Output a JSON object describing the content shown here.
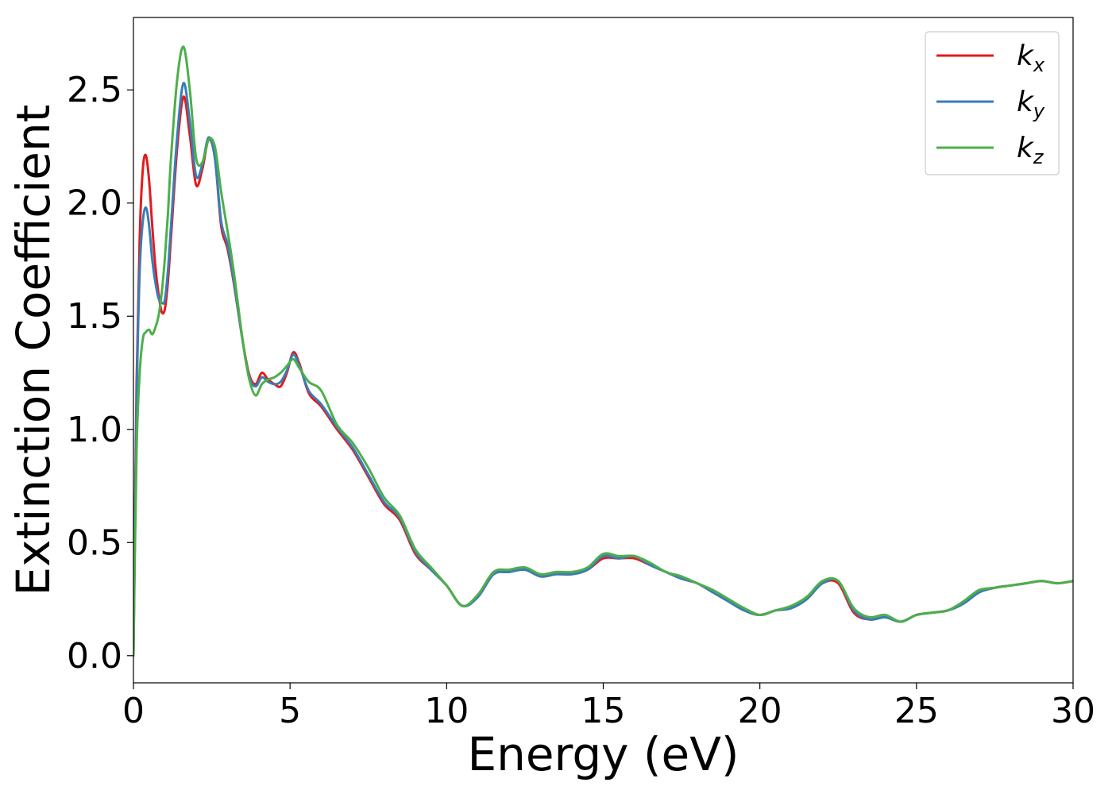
{
  "chart_data": {
    "type": "line",
    "title": "",
    "xlabel": "Energy (eV)",
    "ylabel": "Extinction Coefficient",
    "xlim": [
      0,
      30
    ],
    "ylim": [
      -0.12,
      2.82
    ],
    "xticks": [
      0,
      5,
      10,
      15,
      20,
      25,
      30
    ],
    "xtick_labels": [
      "0",
      "5",
      "10",
      "15",
      "20",
      "25",
      "30"
    ],
    "yticks": [
      0.0,
      0.5,
      1.0,
      1.5,
      2.0,
      2.5
    ],
    "ytick_labels": [
      "0.0",
      "0.5",
      "1.0",
      "1.5",
      "2.0",
      "2.5"
    ],
    "grid": false,
    "legend_position": "top-right",
    "series": [
      {
        "name": "k",
        "subscript": "x",
        "color": "#e41a1c",
        "x": [
          0,
          0.1,
          0.2,
          0.3,
          0.4,
          0.5,
          0.6,
          0.7,
          0.8,
          0.9,
          1.0,
          1.1,
          1.2,
          1.4,
          1.6,
          1.8,
          2.0,
          2.2,
          2.4,
          2.6,
          2.8,
          3.0,
          3.2,
          3.5,
          3.7,
          3.9,
          4.1,
          4.3,
          4.5,
          4.7,
          4.9,
          5.1,
          5.3,
          5.6,
          6.0,
          6.5,
          7.0,
          7.5,
          8.0,
          8.5,
          9.0,
          9.5,
          10.0,
          10.5,
          11.0,
          11.5,
          12.0,
          12.5,
          13.0,
          13.5,
          14.0,
          14.5,
          15.0,
          15.5,
          16.0,
          16.5,
          17.0,
          17.5,
          18.0,
          18.5,
          19.0,
          19.5,
          20.0,
          20.5,
          21.0,
          21.5,
          22.0,
          22.5,
          23.0,
          23.5,
          24.0,
          24.5,
          25.0,
          25.5,
          26.0,
          26.5,
          27.0,
          27.5,
          28.0,
          28.5,
          29.0,
          29.5,
          30.0
        ],
        "y": [
          0.0,
          1.2,
          1.85,
          2.15,
          2.21,
          2.1,
          1.9,
          1.72,
          1.6,
          1.52,
          1.53,
          1.65,
          1.85,
          2.25,
          2.47,
          2.3,
          2.08,
          2.15,
          2.28,
          2.2,
          1.9,
          1.8,
          1.65,
          1.38,
          1.24,
          1.2,
          1.25,
          1.22,
          1.2,
          1.19,
          1.25,
          1.34,
          1.29,
          1.16,
          1.1,
          1.0,
          0.91,
          0.79,
          0.67,
          0.6,
          0.45,
          0.38,
          0.31,
          0.22,
          0.26,
          0.36,
          0.37,
          0.38,
          0.35,
          0.36,
          0.36,
          0.38,
          0.43,
          0.43,
          0.43,
          0.4,
          0.37,
          0.34,
          0.32,
          0.28,
          0.24,
          0.2,
          0.18,
          0.2,
          0.21,
          0.25,
          0.32,
          0.32,
          0.19,
          0.16,
          0.17,
          0.15,
          0.18,
          0.19,
          0.2,
          0.23,
          0.28,
          0.3,
          0.31,
          0.32,
          0.33,
          0.32,
          0.33
        ]
      },
      {
        "name": "k",
        "subscript": "y",
        "color": "#377eb8",
        "x": [
          0,
          0.1,
          0.2,
          0.3,
          0.4,
          0.5,
          0.6,
          0.7,
          0.8,
          0.9,
          1.0,
          1.1,
          1.2,
          1.4,
          1.6,
          1.8,
          2.0,
          2.2,
          2.4,
          2.6,
          2.8,
          3.0,
          3.2,
          3.5,
          3.7,
          3.9,
          4.1,
          4.3,
          4.5,
          4.7,
          4.9,
          5.1,
          5.3,
          5.6,
          6.0,
          6.5,
          7.0,
          7.5,
          8.0,
          8.5,
          9.0,
          9.5,
          10.0,
          10.5,
          11.0,
          11.5,
          12.0,
          12.5,
          13.0,
          13.5,
          14.0,
          14.5,
          15.0,
          15.5,
          16.0,
          16.5,
          17.0,
          17.5,
          18.0,
          18.5,
          19.0,
          19.5,
          20.0,
          20.5,
          21.0,
          21.5,
          22.0,
          22.5,
          23.0,
          23.5,
          24.0,
          24.5,
          25.0,
          25.5,
          26.0,
          26.5,
          27.0,
          27.5,
          28.0,
          28.5,
          29.0,
          29.5,
          30.0
        ],
        "y": [
          0.0,
          1.1,
          1.7,
          1.92,
          1.98,
          1.9,
          1.75,
          1.65,
          1.58,
          1.56,
          1.57,
          1.7,
          1.9,
          2.3,
          2.53,
          2.36,
          2.12,
          2.17,
          2.29,
          2.2,
          1.92,
          1.82,
          1.66,
          1.38,
          1.23,
          1.19,
          1.23,
          1.21,
          1.2,
          1.21,
          1.26,
          1.33,
          1.28,
          1.17,
          1.11,
          1.01,
          0.92,
          0.8,
          0.68,
          0.61,
          0.46,
          0.38,
          0.31,
          0.22,
          0.26,
          0.36,
          0.37,
          0.38,
          0.35,
          0.36,
          0.36,
          0.38,
          0.44,
          0.43,
          0.44,
          0.4,
          0.37,
          0.34,
          0.32,
          0.28,
          0.24,
          0.2,
          0.18,
          0.2,
          0.21,
          0.25,
          0.32,
          0.33,
          0.2,
          0.16,
          0.17,
          0.15,
          0.18,
          0.19,
          0.2,
          0.23,
          0.28,
          0.3,
          0.31,
          0.32,
          0.33,
          0.32,
          0.33
        ]
      },
      {
        "name": "k",
        "subscript": "z",
        "color": "#4daf4a",
        "x": [
          0,
          0.1,
          0.2,
          0.3,
          0.4,
          0.5,
          0.6,
          0.7,
          0.8,
          0.9,
          1.0,
          1.1,
          1.2,
          1.4,
          1.6,
          1.8,
          2.0,
          2.2,
          2.4,
          2.6,
          2.8,
          3.0,
          3.2,
          3.5,
          3.7,
          3.9,
          4.1,
          4.3,
          4.5,
          4.7,
          4.9,
          5.1,
          5.3,
          5.6,
          6.0,
          6.5,
          7.0,
          7.5,
          8.0,
          8.5,
          9.0,
          9.5,
          10.0,
          10.5,
          11.0,
          11.5,
          12.0,
          12.5,
          13.0,
          13.5,
          14.0,
          14.5,
          15.0,
          15.5,
          16.0,
          16.5,
          17.0,
          17.5,
          18.0,
          18.5,
          19.0,
          19.5,
          20.0,
          20.5,
          21.0,
          21.5,
          22.0,
          22.5,
          23.0,
          23.5,
          24.0,
          24.5,
          25.0,
          25.5,
          26.0,
          26.5,
          27.0,
          27.5,
          28.0,
          28.5,
          29.0,
          29.5,
          30.0
        ],
        "y": [
          0.0,
          0.9,
          1.25,
          1.4,
          1.43,
          1.44,
          1.42,
          1.45,
          1.5,
          1.6,
          1.75,
          1.95,
          2.2,
          2.55,
          2.69,
          2.5,
          2.2,
          2.18,
          2.28,
          2.25,
          2.05,
          1.88,
          1.7,
          1.38,
          1.22,
          1.15,
          1.2,
          1.22,
          1.23,
          1.25,
          1.28,
          1.31,
          1.27,
          1.21,
          1.17,
          1.02,
          0.94,
          0.83,
          0.7,
          0.62,
          0.47,
          0.39,
          0.31,
          0.22,
          0.27,
          0.37,
          0.38,
          0.39,
          0.36,
          0.37,
          0.37,
          0.39,
          0.45,
          0.44,
          0.44,
          0.41,
          0.37,
          0.35,
          0.32,
          0.29,
          0.25,
          0.21,
          0.18,
          0.2,
          0.22,
          0.26,
          0.33,
          0.33,
          0.21,
          0.17,
          0.18,
          0.15,
          0.18,
          0.19,
          0.2,
          0.24,
          0.29,
          0.3,
          0.31,
          0.32,
          0.33,
          0.32,
          0.33
        ]
      }
    ]
  }
}
